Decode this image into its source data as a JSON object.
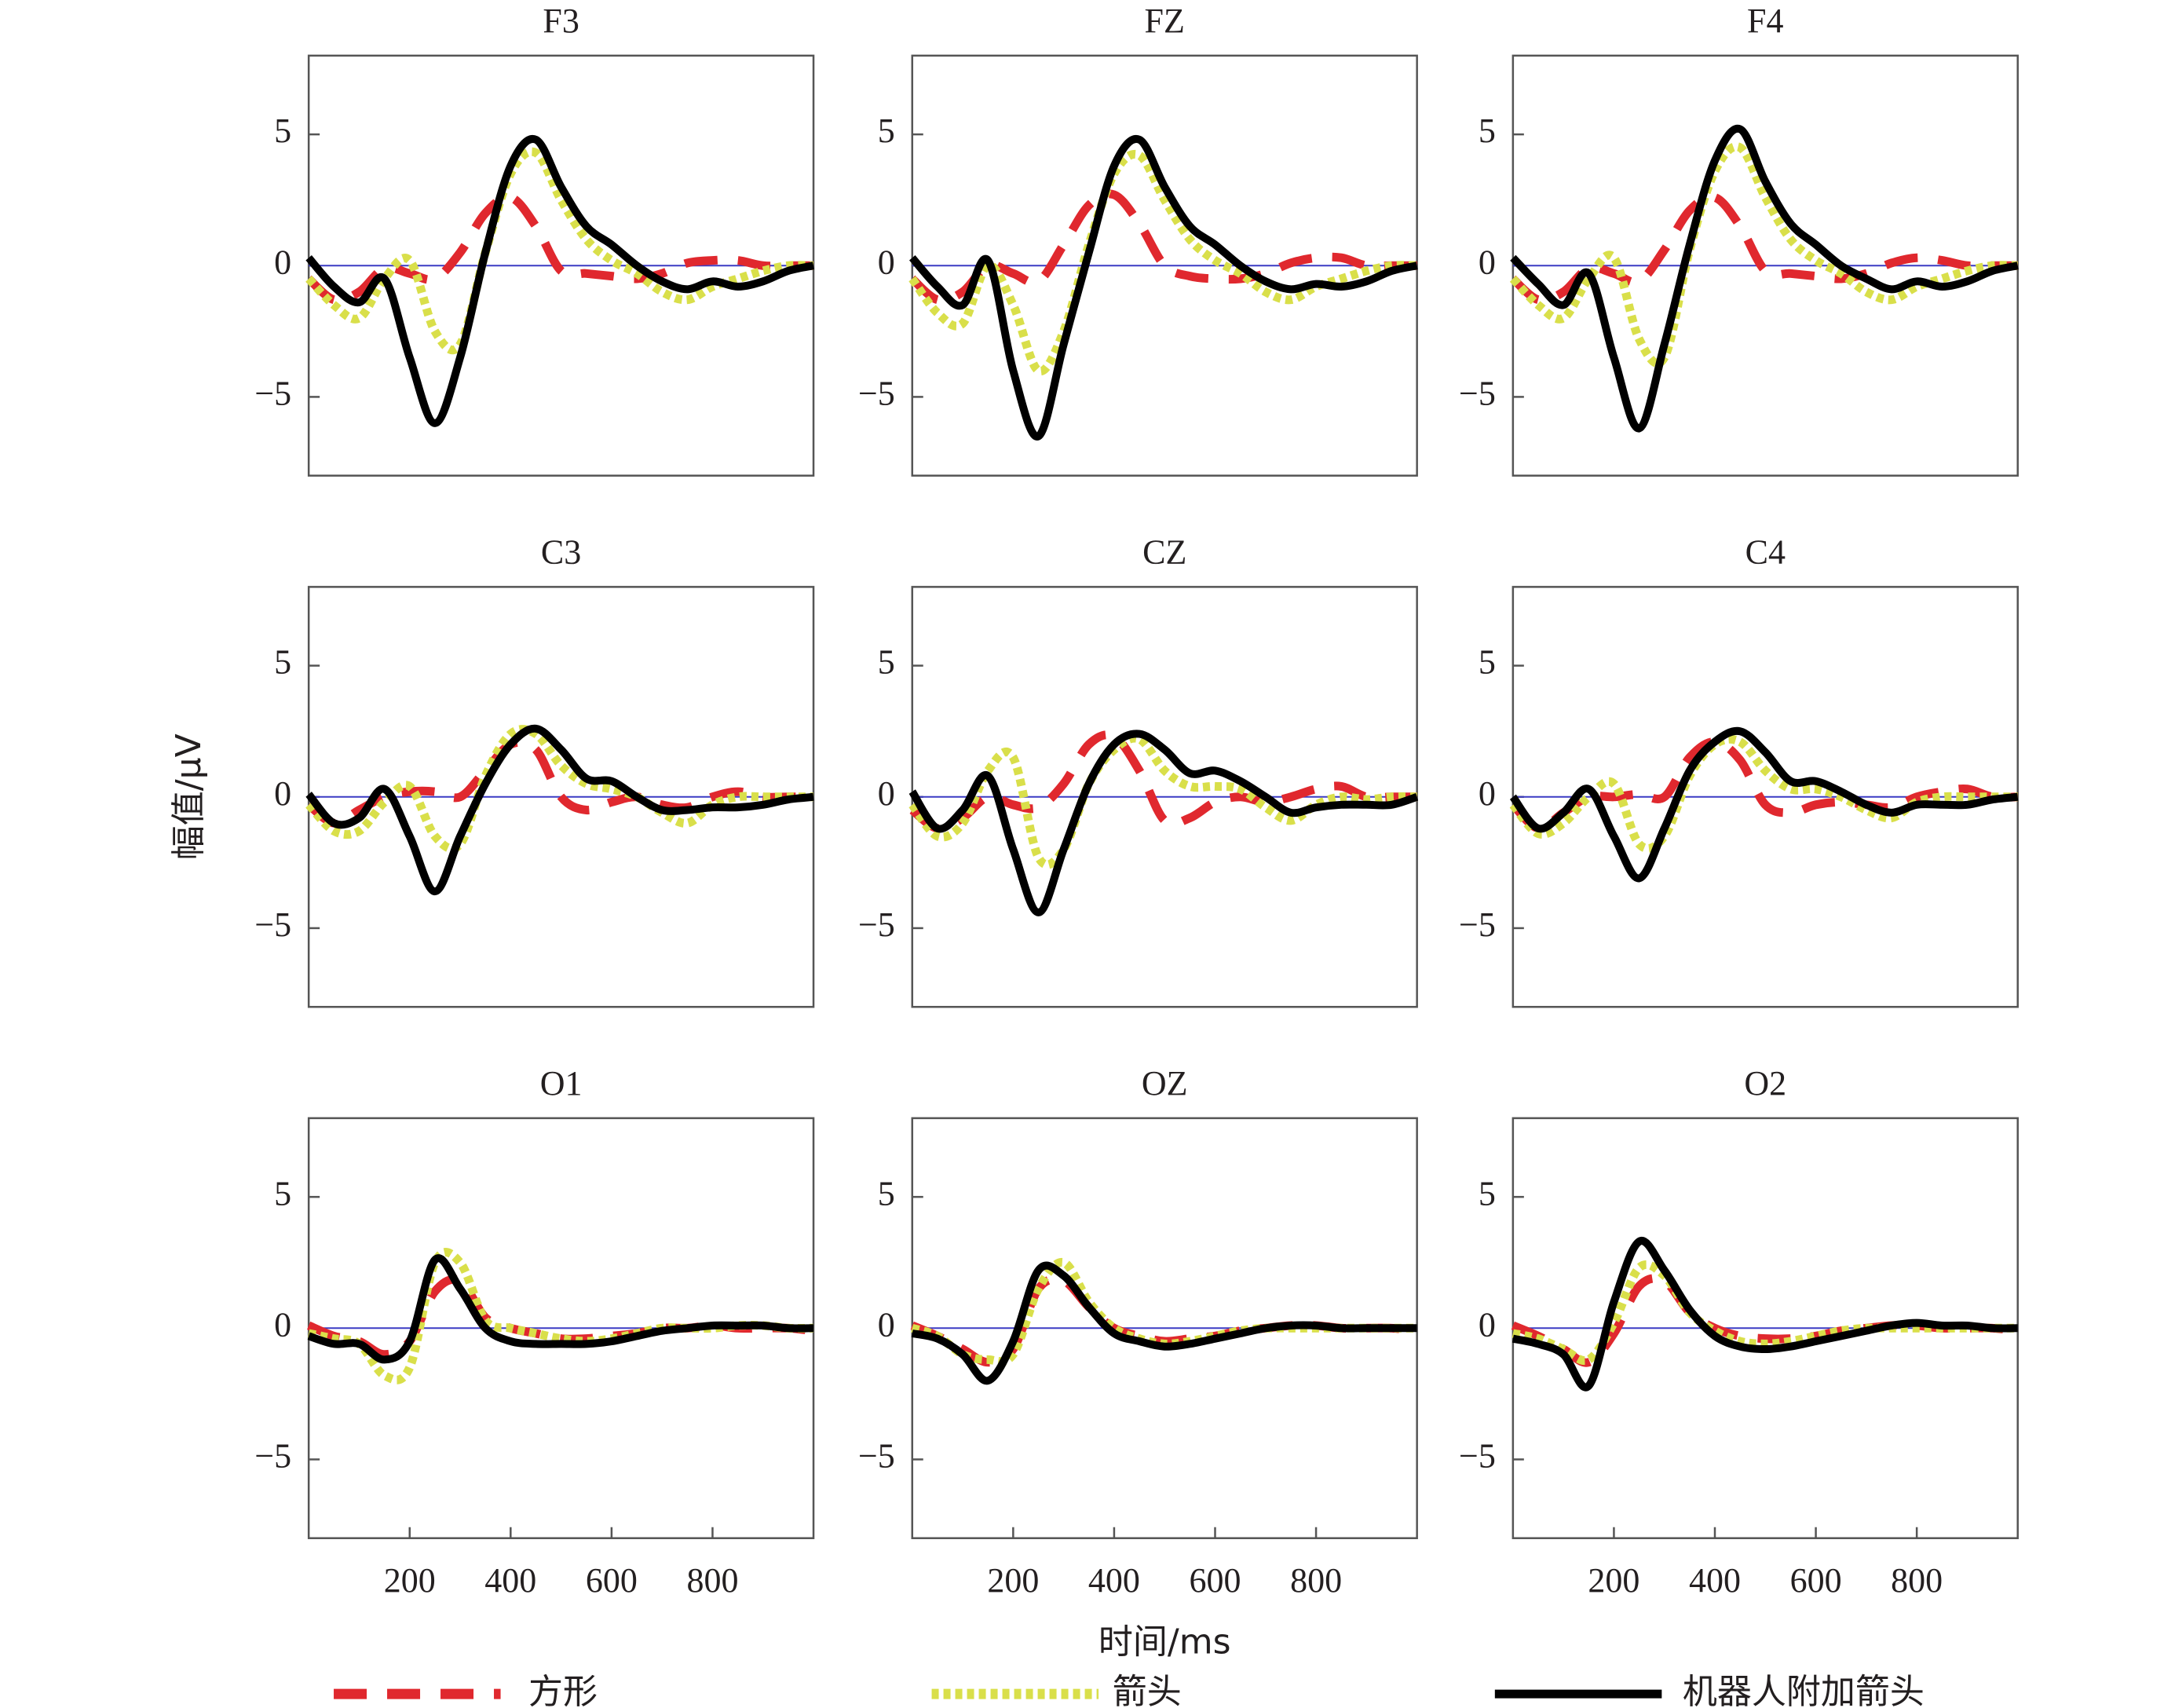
{
  "chart_data": [
    {
      "type": "line",
      "title": "F3",
      "x": [
        0,
        50,
        100,
        150,
        200,
        250,
        300,
        350,
        400,
        450,
        500,
        550,
        600,
        650,
        700,
        750,
        800,
        850,
        900,
        950,
        1000
      ],
      "series": [
        {
          "name": "方形",
          "color": "#e0282e",
          "dash": "dashed",
          "values": [
            -0.5,
            -1.3,
            -1,
            -0.1,
            -0.3,
            -0.5,
            0.5,
            2,
            2.6,
            1.5,
            -0.2,
            -0.3,
            -0.4,
            -0.5,
            -0.3,
            0.1,
            0.2,
            0.2,
            0,
            0,
            0
          ]
        },
        {
          "name": "箭头",
          "color": "#d9df4a",
          "dash": "dotted",
          "values": [
            -0.5,
            -1.5,
            -2,
            -0.5,
            0.2,
            -2.5,
            -3,
            0.5,
            3.5,
            4.3,
            2.5,
            1,
            0.2,
            -0.3,
            -1,
            -1.3,
            -0.8,
            -0.5,
            -0.2,
            0,
            0
          ]
        },
        {
          "name": "机器人附加箭头",
          "color": "#000000",
          "dash": "solid",
          "values": [
            0.3,
            -0.8,
            -1.4,
            -0.5,
            -3.5,
            -6,
            -3.5,
            0.5,
            3.8,
            4.8,
            3,
            1.5,
            0.8,
            0,
            -0.6,
            -0.9,
            -0.6,
            -0.8,
            -0.6,
            -0.2,
            0
          ]
        }
      ],
      "xlim": [
        0,
        1000
      ],
      "ylim": [
        -8,
        8
      ],
      "yticks": [
        {
          "value": -5,
          "label": "−5"
        },
        0,
        5
      ],
      "zero_line": "#3b3bc4"
    },
    {
      "type": "line",
      "title": "FZ",
      "x": [
        0,
        50,
        100,
        150,
        200,
        250,
        300,
        350,
        400,
        450,
        500,
        550,
        600,
        650,
        700,
        750,
        800,
        850,
        900,
        950,
        1000
      ],
      "series": [
        {
          "name": "方形",
          "color": "#e0282e",
          "dash": "dashed",
          "values": [
            -0.5,
            -1.3,
            -1,
            0,
            -0.3,
            -0.6,
            0.8,
            2.3,
            2.7,
            1.6,
            0,
            -0.4,
            -0.5,
            -0.5,
            -0.3,
            0.1,
            0.3,
            0.3,
            0,
            0,
            0
          ]
        },
        {
          "name": "箭头",
          "color": "#d9df4a",
          "dash": "dotted",
          "values": [
            -0.5,
            -1.8,
            -2.2,
            0,
            -1.5,
            -4,
            -2.5,
            0.8,
            3.5,
            4.2,
            2.5,
            1,
            0.2,
            -0.3,
            -1,
            -1.3,
            -0.8,
            -0.5,
            -0.2,
            0,
            0
          ]
        },
        {
          "name": "机器人附加箭头",
          "color": "#000000",
          "dash": "solid",
          "values": [
            0.3,
            -0.8,
            -1.5,
            0.2,
            -4,
            -6.5,
            -3,
            0.5,
            3.8,
            4.8,
            3,
            1.5,
            0.8,
            0,
            -0.6,
            -0.9,
            -0.7,
            -0.8,
            -0.6,
            -0.2,
            0
          ]
        }
      ],
      "xlim": [
        0,
        1000
      ],
      "ylim": [
        -8,
        8
      ],
      "yticks": [
        {
          "value": -5,
          "label": "−5"
        },
        0,
        5
      ],
      "zero_line": "#3b3bc4"
    },
    {
      "type": "line",
      "title": "F4",
      "x": [
        0,
        50,
        100,
        150,
        200,
        250,
        300,
        350,
        400,
        450,
        500,
        550,
        600,
        650,
        700,
        750,
        800,
        850,
        900,
        950,
        1000
      ],
      "series": [
        {
          "name": "方形",
          "color": "#e0282e",
          "dash": "dashed",
          "values": [
            -0.5,
            -1.3,
            -1,
            -0.1,
            -0.3,
            -0.6,
            0.6,
            2.1,
            2.6,
            1.5,
            -0.2,
            -0.3,
            -0.4,
            -0.5,
            -0.3,
            0.1,
            0.3,
            0.2,
            0,
            0,
            0
          ]
        },
        {
          "name": "箭头",
          "color": "#d9df4a",
          "dash": "dotted",
          "values": [
            -0.5,
            -1.5,
            -2,
            -0.5,
            0.3,
            -2.8,
            -3.5,
            0.6,
            3.6,
            4.5,
            2.6,
            1,
            0.2,
            -0.3,
            -1,
            -1.3,
            -0.8,
            -0.5,
            -0.2,
            0,
            0
          ]
        },
        {
          "name": "机器人附加箭头",
          "color": "#000000",
          "dash": "solid",
          "values": [
            0.3,
            -0.7,
            -1.5,
            -0.3,
            -3.5,
            -6.2,
            -3,
            0.8,
            4,
            5.2,
            3.2,
            1.6,
            0.8,
            0,
            -0.5,
            -0.9,
            -0.6,
            -0.8,
            -0.6,
            -0.2,
            0
          ]
        }
      ],
      "xlim": [
        0,
        1000
      ],
      "ylim": [
        -8,
        8
      ],
      "yticks": [
        {
          "value": -5,
          "label": "−5"
        },
        0,
        5
      ],
      "zero_line": "#3b3bc4"
    },
    {
      "type": "line",
      "title": "C3",
      "ylabel": "幅值/μV",
      "x": [
        0,
        50,
        100,
        150,
        200,
        250,
        300,
        350,
        400,
        450,
        500,
        550,
        600,
        650,
        700,
        750,
        800,
        850,
        900,
        950,
        1000
      ],
      "series": [
        {
          "name": "方形",
          "color": "#e0282e",
          "dash": "dashed",
          "values": [
            -0.3,
            -1,
            -0.5,
            0,
            0.2,
            0.2,
            0,
            1,
            2,
            1.8,
            0,
            -0.5,
            -0.2,
            0,
            -0.3,
            -0.4,
            0,
            0.2,
            0,
            0,
            0
          ]
        },
        {
          "name": "箭头",
          "color": "#d9df4a",
          "dash": "dotted",
          "values": [
            -0.3,
            -1.3,
            -1.3,
            -0.2,
            0.4,
            -1.5,
            -1.8,
            0.8,
            2.4,
            2.4,
            1.2,
            0.5,
            0.3,
            0,
            -0.6,
            -1,
            -0.3,
            0,
            0,
            0,
            0
          ]
        },
        {
          "name": "机器人附加箭头",
          "color": "#000000",
          "dash": "solid",
          "values": [
            0.1,
            -1,
            -0.8,
            0.3,
            -1.5,
            -3.6,
            -1.5,
            0.5,
            2,
            2.6,
            1.8,
            0.7,
            0.6,
            0,
            -0.5,
            -0.5,
            -0.4,
            -0.4,
            -0.3,
            -0.1,
            0
          ]
        }
      ],
      "xlim": [
        0,
        1000
      ],
      "ylim": [
        -8,
        8
      ],
      "yticks": [
        {
          "value": -5,
          "label": "−5"
        },
        0,
        5
      ],
      "zero_line": "#3b3bc4"
    },
    {
      "type": "line",
      "title": "CZ",
      "x": [
        0,
        50,
        100,
        150,
        200,
        250,
        300,
        350,
        400,
        450,
        500,
        550,
        600,
        650,
        700,
        750,
        800,
        850,
        900,
        950,
        1000
      ],
      "series": [
        {
          "name": "方形",
          "color": "#e0282e",
          "dash": "dashed",
          "values": [
            -0.5,
            -1.2,
            -0.8,
            0,
            -0.3,
            -0.4,
            0.5,
            2,
            2.3,
            1,
            -0.9,
            -0.8,
            -0.2,
            0,
            -0.2,
            0,
            0.3,
            0.4,
            0,
            0,
            0
          ]
        },
        {
          "name": "箭头",
          "color": "#d9df4a",
          "dash": "dotted",
          "values": [
            -0.3,
            -1.5,
            -1,
            1,
            1.5,
            -2.3,
            -2,
            0.5,
            1.8,
            2.2,
            1,
            0.4,
            0.4,
            0.3,
            -0.4,
            -0.9,
            -0.3,
            0,
            -0.1,
            0,
            0
          ]
        },
        {
          "name": "机器人附加箭头",
          "color": "#000000",
          "dash": "solid",
          "values": [
            0.2,
            -1.2,
            -0.5,
            0.8,
            -2,
            -4.4,
            -2,
            0.5,
            2,
            2.4,
            1.8,
            0.9,
            1,
            0.6,
            0,
            -0.6,
            -0.4,
            -0.3,
            -0.3,
            -0.3,
            0
          ]
        }
      ],
      "xlim": [
        0,
        1000
      ],
      "ylim": [
        -8,
        8
      ],
      "yticks": [
        {
          "value": -5,
          "label": "−5"
        },
        0,
        5
      ],
      "zero_line": "#3b3bc4"
    },
    {
      "type": "line",
      "title": "C4",
      "x": [
        0,
        50,
        100,
        150,
        200,
        250,
        300,
        350,
        400,
        450,
        500,
        550,
        600,
        650,
        700,
        750,
        800,
        850,
        900,
        950,
        1000
      ],
      "series": [
        {
          "name": "方形",
          "color": "#e0282e",
          "dash": "dashed",
          "values": [
            -0.3,
            -1.2,
            -0.6,
            0,
            0,
            0.1,
            0,
            1.5,
            2.1,
            1.4,
            -0.3,
            -0.6,
            -0.3,
            -0.2,
            -0.3,
            -0.4,
            0,
            0.2,
            0.3,
            0,
            0
          ]
        },
        {
          "name": "箭头",
          "color": "#d9df4a",
          "dash": "dotted",
          "values": [
            -0.3,
            -1.4,
            -1,
            0,
            0.5,
            -1.8,
            -1.5,
            0.8,
            2,
            2.1,
            1,
            0.3,
            0.3,
            0,
            -0.5,
            -0.8,
            -0.2,
            0,
            0,
            0,
            0
          ]
        },
        {
          "name": "机器人附加箭头",
          "color": "#000000",
          "dash": "solid",
          "values": [
            0,
            -1.2,
            -0.6,
            0.3,
            -1.5,
            -3.1,
            -1.2,
            1,
            2.1,
            2.5,
            1.7,
            0.6,
            0.6,
            0.2,
            -0.3,
            -0.6,
            -0.3,
            -0.3,
            -0.3,
            -0.1,
            0
          ]
        }
      ],
      "xlim": [
        0,
        1000
      ],
      "ylim": [
        -8,
        8
      ],
      "yticks": [
        {
          "value": -5,
          "label": "−5"
        },
        0,
        5
      ],
      "zero_line": "#3b3bc4"
    },
    {
      "type": "line",
      "title": "O1",
      "x": [
        0,
        50,
        100,
        150,
        200,
        250,
        300,
        350,
        400,
        450,
        500,
        550,
        600,
        650,
        700,
        750,
        800,
        850,
        900,
        950,
        1000
      ],
      "series": [
        {
          "name": "方形",
          "color": "#e0282e",
          "dash": "dashed",
          "values": [
            0.1,
            -0.3,
            -0.5,
            -1,
            -0.5,
            1.4,
            1.8,
            0.4,
            0,
            -0.2,
            -0.4,
            -0.4,
            -0.3,
            -0.2,
            0,
            0,
            0.1,
            0,
            0,
            0,
            -0.1
          ]
        },
        {
          "name": "箭头",
          "color": "#d9df4a",
          "dash": "dotted",
          "values": [
            -0.2,
            -0.4,
            -0.6,
            -1.8,
            -1.5,
            2.5,
            2.5,
            0.3,
            0,
            -0.2,
            -0.4,
            -0.5,
            -0.4,
            -0.2,
            0,
            0,
            0,
            0.1,
            0.1,
            0,
            0
          ]
        },
        {
          "name": "机器人附加箭头",
          "color": "#000000",
          "dash": "solid",
          "values": [
            -0.3,
            -0.6,
            -0.6,
            -1.2,
            -0.5,
            2.6,
            1.5,
            0,
            -0.5,
            -0.6,
            -0.6,
            -0.6,
            -0.5,
            -0.3,
            -0.1,
            0,
            0.1,
            0.1,
            0.1,
            0,
            0
          ]
        }
      ],
      "xlim": [
        0,
        1000
      ],
      "ylim": [
        -8,
        8
      ],
      "yticks": [
        {
          "value": -5,
          "label": "−5"
        },
        0,
        5
      ],
      "xticks": [
        200,
        400,
        600,
        800
      ],
      "zero_line": "#3b3bc4"
    },
    {
      "type": "line",
      "title": "OZ",
      "xlabel": "时间/ms",
      "x": [
        0,
        50,
        100,
        150,
        200,
        250,
        300,
        350,
        400,
        450,
        500,
        550,
        600,
        650,
        700,
        750,
        800,
        850,
        900,
        950,
        1000
      ],
      "series": [
        {
          "name": "方形",
          "color": "#e0282e",
          "dash": "dashed",
          "values": [
            0.1,
            -0.3,
            -0.8,
            -1.3,
            -0.8,
            1.5,
            1.8,
            0.8,
            0,
            -0.3,
            -0.5,
            -0.4,
            -0.3,
            -0.1,
            0,
            0.1,
            0.1,
            0,
            0,
            0,
            -0.1
          ]
        },
        {
          "name": "箭头",
          "color": "#d9df4a",
          "dash": "dotted",
          "values": [
            0,
            -0.3,
            -1,
            -1.2,
            -1,
            1.5,
            2.5,
            1,
            0,
            -0.4,
            -0.6,
            -0.5,
            -0.3,
            -0.1,
            0,
            0,
            0,
            0,
            0,
            0,
            0
          ]
        },
        {
          "name": "机器人附加箭头",
          "color": "#000000",
          "dash": "solid",
          "values": [
            -0.2,
            -0.4,
            -1,
            -2,
            -0.5,
            2.2,
            2,
            0.8,
            -0.2,
            -0.5,
            -0.7,
            -0.6,
            -0.4,
            -0.2,
            0,
            0.1,
            0.1,
            0,
            0,
            0,
            0
          ]
        }
      ],
      "xlim": [
        0,
        1000
      ],
      "ylim": [
        -8,
        8
      ],
      "yticks": [
        {
          "value": -5,
          "label": "−5"
        },
        0,
        5
      ],
      "xticks": [
        200,
        400,
        600,
        800
      ],
      "zero_line": "#3b3bc4"
    },
    {
      "type": "line",
      "title": "O2",
      "x": [
        0,
        50,
        100,
        150,
        200,
        250,
        300,
        350,
        400,
        450,
        500,
        550,
        600,
        650,
        700,
        750,
        800,
        850,
        900,
        950,
        1000
      ],
      "series": [
        {
          "name": "方形",
          "color": "#e0282e",
          "dash": "dashed",
          "values": [
            0.1,
            -0.3,
            -0.8,
            -1.3,
            -0.2,
            1.6,
            1.8,
            0.6,
            0,
            -0.3,
            -0.4,
            -0.4,
            -0.3,
            -0.1,
            0,
            0.1,
            0.1,
            0,
            0,
            0,
            -0.1
          ]
        },
        {
          "name": "箭头",
          "color": "#d9df4a",
          "dash": "dotted",
          "values": [
            -0.2,
            -0.4,
            -0.8,
            -1.2,
            0.2,
            2.3,
            2,
            0.6,
            -0.1,
            -0.5,
            -0.6,
            -0.5,
            -0.3,
            -0.1,
            0,
            0,
            0,
            0,
            0,
            0,
            0
          ]
        },
        {
          "name": "机器人附加箭头",
          "color": "#000000",
          "dash": "solid",
          "values": [
            -0.4,
            -0.6,
            -1,
            -2.2,
            1,
            3.3,
            2.2,
            0.7,
            -0.3,
            -0.7,
            -0.8,
            -0.7,
            -0.5,
            -0.3,
            -0.1,
            0.1,
            0.2,
            0.1,
            0.1,
            0,
            0
          ]
        }
      ],
      "xlim": [
        0,
        1000
      ],
      "ylim": [
        -8,
        8
      ],
      "yticks": [
        {
          "value": -5,
          "label": "−5"
        },
        0,
        5
      ],
      "xticks": [
        200,
        400,
        600,
        800
      ],
      "zero_line": "#3b3bc4"
    }
  ]
}
